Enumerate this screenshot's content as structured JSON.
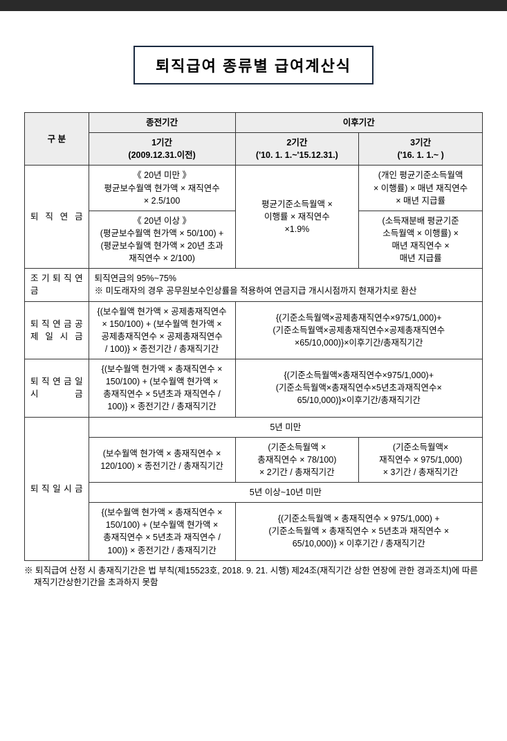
{
  "title": "퇴직급여 종류별 급여계산식",
  "header": {
    "gubun": "구 분",
    "prev": "종전기간",
    "after": "이후기간",
    "p1": "1기간",
    "p1_sub": "(2009.12.31.이전)",
    "p2": "2기간",
    "p2_sub": "('10. 1. 1.~'15.12.31.)",
    "p3": "3기간",
    "p3_sub": "('16. 1. 1.~ )"
  },
  "rows": {
    "r1_label": "퇴 직 연 금",
    "r1_p1a": "《 20년 미만 》\n평균보수월액 현가액 × 재직연수\n× 2.5/100",
    "r1_p1b": "《 20년 이상 》\n(평균보수월액 현가액 × 50/100) +\n(평균보수월액 현가액 × 20년 초과\n재직연수 × 2/100)",
    "r1_p2": "평균기준소득월액 ×\n이행률 × 재직연수\n×1.9%",
    "r1_p3a": "(개인 평균기준소득월액\n× 이행률) × 매년 재직연수\n× 매년 지급률",
    "r1_p3b": "(소득재분배 평균기준\n소득월액 × 이행률) ×\n매년 재직연수 ×\n매년 지급률",
    "r2_label": "조 기 퇴 직 연 금",
    "r2_text": "퇴직연금의 95%~75%\n※ 미도래자의 경우 공무원보수인상률을 적용하여 연금지급 개시시점까지 현재가치로 환산",
    "r3_label": "퇴 직 연 금 공 제 일 시 금",
    "r3_p1": "{(보수월액 현가액 × 공제총재직연수\n× 150/100) + (보수월액 현가액 ×\n공제총재직연수 × 공제총재직연수\n/ 100)} × 종전기간 / 총재직기간",
    "r3_p23": "{(기준소득월액×공제총재직연수×975/1,000)+\n(기준소득월액×공제총재직연수×공제총재직연수\n×65/10,000)}×이후기간/총재직기간",
    "r4_label": "퇴 직 연 금 일 시 금",
    "r4_p1": "{(보수월액 현가액 × 총재직연수 ×\n150/100) + (보수월액 현가액 ×\n총재직연수 × 5년초과 재직연수 /\n100)} × 종전기간 / 총재직기간",
    "r4_p23": "{(기준소득월액×총재직연수×975/1,000)+\n(기준소득월액×총재직연수×5년초과재직연수×\n65/10,000)}×이후기간/총재직기간",
    "r5_label": "퇴 직 일 시 금",
    "r5_h1": "5년 미만",
    "r5_p1": "(보수월액 현가액 × 총재직연수 ×\n120/100) × 종전기간 / 총재직기간",
    "r5_p2": "(기준소득월액 ×\n총재직연수 × 78/100)\n× 2기간 / 총재직기간",
    "r5_p3": "(기준소득월액×\n재직연수 × 975/1,000)\n× 3기간 / 총재직기간",
    "r5_h2": "5년 이상~10년 미만",
    "r5b_p1": "{(보수월액 현가액 × 총재직연수 ×\n150/100) + (보수월액 현가액 ×\n총재직연수 × 5년초과 재직연수 /\n100)} × 종전기간 / 총재직기간",
    "r5b_p23": "{(기준소득월액 × 총재직연수 × 975/1,000) +\n(기준소득월액 × 총재직연수 × 5년초과 재직연수 ×\n65/10,000)} × 이후기간 / 총재직기간"
  },
  "footnote": "※ 퇴직급여 산정 시 총재직기간은 법 부칙(제15523호, 2018. 9. 21. 시행) 제24조(재직기간 상한 연장에 관한 경과조치)에 따른 재직기간상한기간을 초과하지 못함"
}
